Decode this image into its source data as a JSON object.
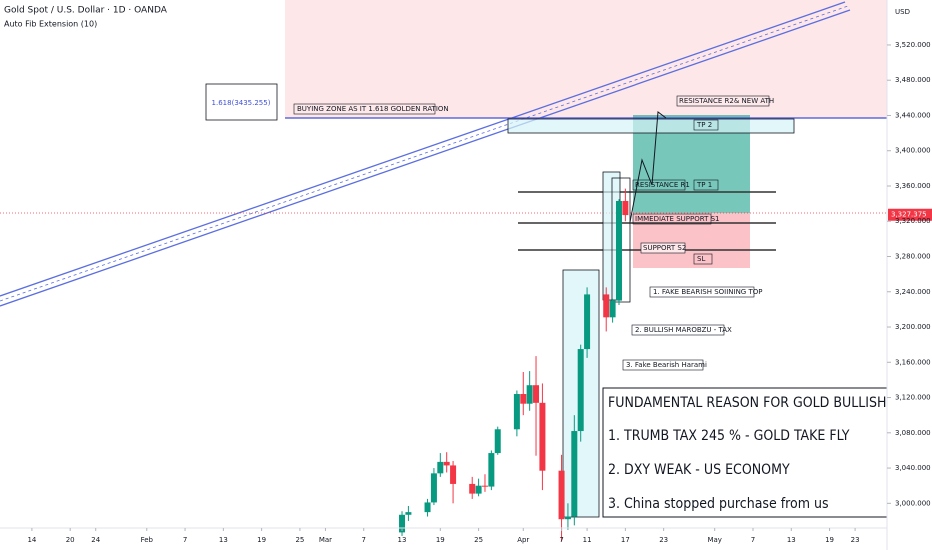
{
  "header": {
    "symbol": "Gold Spot / U.S. Dollar · 1D · OANDA",
    "indicator": "Auto Fib Extension (10)"
  },
  "chart_data": {
    "type": "candlestick",
    "currency": "USD",
    "x": [
      "Mar 13",
      "Mar 14",
      "Mar 17",
      "Mar 18",
      "Mar 19",
      "Mar 20",
      "Mar 21",
      "Mar 24",
      "Mar 25",
      "Mar 26",
      "Mar 27",
      "Mar 28",
      "Mar 31",
      "Apr 1",
      "Apr 2",
      "Apr 3",
      "Apr 4",
      "Apr 7",
      "Apr 8",
      "Apr 9",
      "Apr 10",
      "Apr 11",
      "Apr 14",
      "Apr 15",
      "Apr 16",
      "Apr 17"
    ],
    "open": [
      2967,
      2987,
      2990,
      3001,
      3034,
      3047,
      3043,
      3022,
      3011,
      3020,
      3019,
      3057,
      3084,
      3124,
      3113,
      3134,
      3114,
      3037,
      2982,
      2985,
      3082,
      3175,
      3237,
      3211,
      3230,
      3343
    ],
    "high": [
      2991,
      2997,
      3005,
      3040,
      3057,
      3058,
      3048,
      3030,
      3028,
      3033,
      3060,
      3087,
      3128,
      3149,
      3150,
      3167,
      3136,
      3055,
      3000,
      3100,
      3180,
      3245,
      3245,
      3232,
      3345,
      3357
    ],
    "low": [
      2963,
      2980,
      2985,
      2998,
      3030,
      3035,
      3000,
      3005,
      3008,
      3013,
      3015,
      3055,
      3076,
      3100,
      3105,
      3054,
      3015,
      2957,
      2970,
      2975,
      3070,
      3165,
      3195,
      3205,
      3225,
      3320
    ],
    "close": [
      2987,
      2990,
      3001,
      3034,
      3047,
      3043,
      3022,
      3011,
      3020,
      3019,
      3057,
      3084,
      3124,
      3113,
      3134,
      3114,
      3037,
      2982,
      2985,
      3082,
      3175,
      3237,
      3211,
      3230,
      3343,
      3327
    ],
    "up_color": "#089981",
    "down_color": "#f23645",
    "xlim": [
      "Jan 9",
      "May 28"
    ],
    "xticks": [
      {
        "value": "Jan 14",
        "label": "14"
      },
      {
        "value": "Jan 20",
        "label": "20"
      },
      {
        "value": "Jan 24",
        "label": "24"
      },
      {
        "value": "Feb 1",
        "label": "Feb"
      },
      {
        "value": "Feb 7",
        "label": "7"
      },
      {
        "value": "Feb 13",
        "label": "13"
      },
      {
        "value": "Feb 19",
        "label": "19"
      },
      {
        "value": "Feb 25",
        "label": "25"
      },
      {
        "value": "Mar 1",
        "label": "Mar"
      },
      {
        "value": "Mar 7",
        "label": "7"
      },
      {
        "value": "Mar 13",
        "label": "13"
      },
      {
        "value": "Mar 19",
        "label": "19"
      },
      {
        "value": "Mar 25",
        "label": "25"
      },
      {
        "value": "Apr 1",
        "label": "Apr"
      },
      {
        "value": "Apr 7",
        "label": "7"
      },
      {
        "value": "Apr 11",
        "label": "11"
      },
      {
        "value": "Apr 17",
        "label": "17"
      },
      {
        "value": "Apr 23",
        "label": "23"
      },
      {
        "value": "May 1",
        "label": "May"
      },
      {
        "value": "May 7",
        "label": "7"
      },
      {
        "value": "May 13",
        "label": "13"
      },
      {
        "value": "May 19",
        "label": "19"
      },
      {
        "value": "May 23",
        "label": "23"
      }
    ],
    "ylim": [
      2972,
      3571
    ],
    "yticks": [
      {
        "value": 3000,
        "label": "3,000.000"
      },
      {
        "value": 3040,
        "label": "3,040.000"
      },
      {
        "value": 3080,
        "label": "3,080.000"
      },
      {
        "value": 3120,
        "label": "3,120.000"
      },
      {
        "value": 3160,
        "label": "3,160.000"
      },
      {
        "value": 3200,
        "label": "3,200.000"
      },
      {
        "value": 3240,
        "label": "3,240.000"
      },
      {
        "value": 3280,
        "label": "3,280.000"
      },
      {
        "value": 3320,
        "label": "3,320.000"
      },
      {
        "value": 3360,
        "label": "3,360.000"
      },
      {
        "value": 3400,
        "label": "3,400.000"
      },
      {
        "value": 3440,
        "label": "3,440.000"
      },
      {
        "value": 3480,
        "label": "3,480.000"
      },
      {
        "value": 3520,
        "label": "3,520.000"
      }
    ],
    "last_price": 3327.375,
    "last_price_label": "3,327.375",
    "annotations": {
      "fib": "1.618(3435.255)",
      "buying_zone": "BUYING ZONE AS IT 1.618 GOLDEN RATION",
      "r2": "RESISTANCE R2& NEW ATH",
      "tp2": "TP 2",
      "r1": "RESISTANCE R1",
      "tp1": "TP 1",
      "s1": "IMMEDIATE SUPPORT S1",
      "s2": "SUPPORT S2",
      "sl": "SL",
      "note1": "1. FAKE BEARISH SOIINING TOP",
      "note2": "2. BULLISH MAROBZU - TAX",
      "note3": "3. Fake Bearish Harami"
    },
    "fundamentals": {
      "title": "FUNDAMENTAL REASON FOR GOLD BULLISH",
      "points": [
        "1. TRUMB TAX 245 % - GOLD TAKE FLY",
        "2. DXY WEAK - US ECONOMY",
        "3. China stopped purchase from us"
      ]
    }
  }
}
